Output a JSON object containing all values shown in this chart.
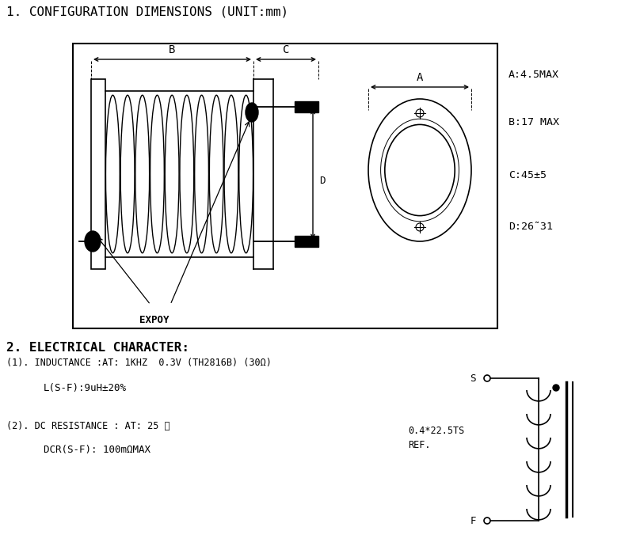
{
  "title1": "1. CONFIGURATION DIMENSIONS (UNIT:mm)",
  "title2": "2. ELECTRICAL CHARACTER:",
  "dim_A": "A:4.5MAX",
  "dim_B": "B:17 MAX",
  "dim_C": "C:45±5",
  "dim_D": "D:26˜31",
  "inductance_line1": "(1). INDUCTANCE :AT: 1KHZ  0.3V (TH2816B) (30Ω)",
  "inductance_line2": "L(S-F):9uH±20%",
  "dc_res_line1": "(2). DC RESISTANCE : AT: 25 ℃",
  "dc_res_line2": "DCR(S-F): 100mΩMAX",
  "coil_label_1": "0.4*22.5TS",
  "coil_label_2": "REF.",
  "expoy": "EXPOY",
  "bg_color": "#ffffff",
  "fg_color": "#000000"
}
